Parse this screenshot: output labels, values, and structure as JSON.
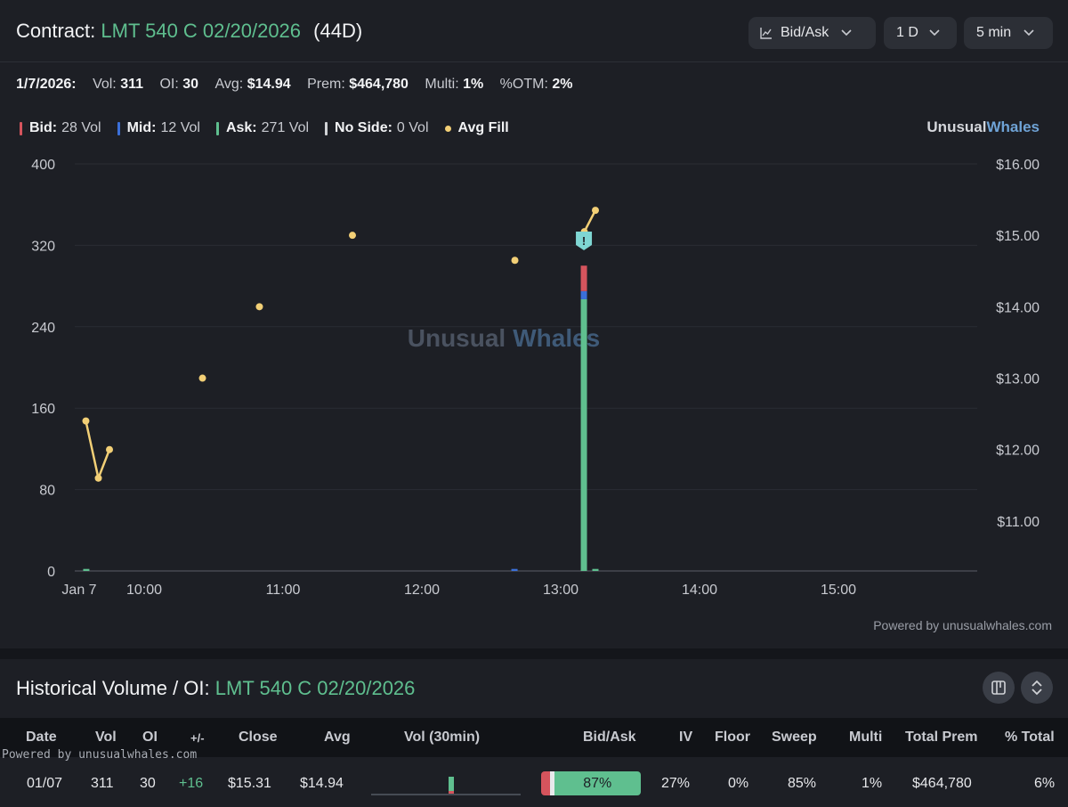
{
  "contract": {
    "label": "Contract:",
    "symbol": "LMT 540 C 02/20/2026",
    "days": "(44D)"
  },
  "controls": {
    "chart_mode": "Bid/Ask",
    "range": "1 D",
    "interval": "5 min"
  },
  "stats": {
    "date": "1/7/2026:",
    "vol_label": "Vol:",
    "vol": "311",
    "oi_label": "OI:",
    "oi": "30",
    "avg_label": "Avg:",
    "avg": "$14.94",
    "prem_label": "Prem:",
    "prem": "$464,780",
    "multi_label": "Multi:",
    "multi": "1%",
    "otm_label": "%OTM:",
    "otm": "2%"
  },
  "legend": {
    "bid_label": "Bid:",
    "bid_value": "28 Vol",
    "mid_label": "Mid:",
    "mid_value": "12 Vol",
    "ask_label": "Ask:",
    "ask_value": "271 Vol",
    "noside_label": "No Side:",
    "noside_value": "0 Vol",
    "avgfill_label": "Avg Fill"
  },
  "brand": {
    "part1": "Unusual",
    "part2": "Whales"
  },
  "watermark": {
    "part1": "Unusual",
    "part2": "Whales"
  },
  "powered_by": "Powered by unusualwhales.com",
  "colors": {
    "bid": "#d5545d",
    "mid": "#3b6fd8",
    "ask": "#5fbf8f",
    "noside": "#d0d2d6",
    "avg_fill": "#f2cf76",
    "accent_green": "#5fbf8f",
    "accent_blue": "#6fa3d6"
  },
  "chart_data": {
    "type": "bar",
    "title": "",
    "x_start_hour": 9.5,
    "x_end_hour": 16.0,
    "x_ticks": [
      {
        "t": 9.5,
        "label": "Jan 7"
      },
      {
        "t": 10,
        "label": "10:00"
      },
      {
        "t": 11,
        "label": "11:00"
      },
      {
        "t": 12,
        "label": "12:00"
      },
      {
        "t": 13,
        "label": "13:00"
      },
      {
        "t": 14,
        "label": "14:00"
      },
      {
        "t": 15,
        "label": "15:00"
      }
    ],
    "y_left": {
      "min": 0,
      "max": 400,
      "ticks": [
        0,
        80,
        160,
        240,
        320,
        400
      ]
    },
    "y_right": {
      "min": 10.3,
      "max": 16.0,
      "ticks": [
        11,
        12,
        13,
        14,
        15,
        16
      ],
      "tick_labels": [
        "$11.00",
        "$12.00",
        "$13.00",
        "$14.00",
        "$15.00",
        "$16.00"
      ]
    },
    "volume_bars": [
      {
        "t": 9.583,
        "ask": 2,
        "mid": 0,
        "bid": 0
      },
      {
        "t": 12.667,
        "ask": 0,
        "mid": 2,
        "bid": 0
      },
      {
        "t": 13.167,
        "ask": 267,
        "mid": 8,
        "bid": 25
      },
      {
        "t": 13.25,
        "ask": 2,
        "mid": 0,
        "bid": 0
      }
    ],
    "avg_fill": [
      {
        "t": 9.58,
        "price": 12.4
      },
      {
        "t": 9.67,
        "price": 11.6
      },
      {
        "t": 9.75,
        "price": 12.0
      },
      {
        "t": 10.42,
        "price": 13.0
      },
      {
        "t": 10.83,
        "price": 14.0
      },
      {
        "t": 11.5,
        "price": 15.0
      },
      {
        "t": 12.67,
        "price": 14.65
      },
      {
        "t": 13.17,
        "price": 15.05
      },
      {
        "t": 13.25,
        "price": 15.35
      }
    ],
    "avg_fill_connected": [
      [
        0,
        1,
        2
      ],
      [
        7,
        8
      ]
    ],
    "alert_marker": {
      "t": 13.167,
      "symbol": "!"
    }
  },
  "historical": {
    "title": "Historical Volume / OI:",
    "symbol": "LMT 540 C 02/20/2026",
    "columns": [
      "Date",
      "Vol",
      "OI",
      "+/-",
      "Close",
      "Avg",
      "Vol (30min)",
      "Bid/Ask",
      "IV",
      "Floor",
      "Sweep",
      "Multi",
      "Total Prem",
      "% Total"
    ],
    "powered_by": "Powered by unusualwhales.com",
    "rows": [
      {
        "date": "01/07",
        "vol": "311",
        "oi": "30",
        "change": "+16",
        "close": "$15.31",
        "avg": "$14.94",
        "bid_ask": "87%",
        "bid_frac": 0.09,
        "mid_frac": 0.04,
        "ask_frac": 0.87,
        "iv": "27%",
        "floor": "0%",
        "sweep": "85%",
        "multi": "1%",
        "total_prem": "$464,780",
        "pct_total": "6%"
      }
    ]
  }
}
